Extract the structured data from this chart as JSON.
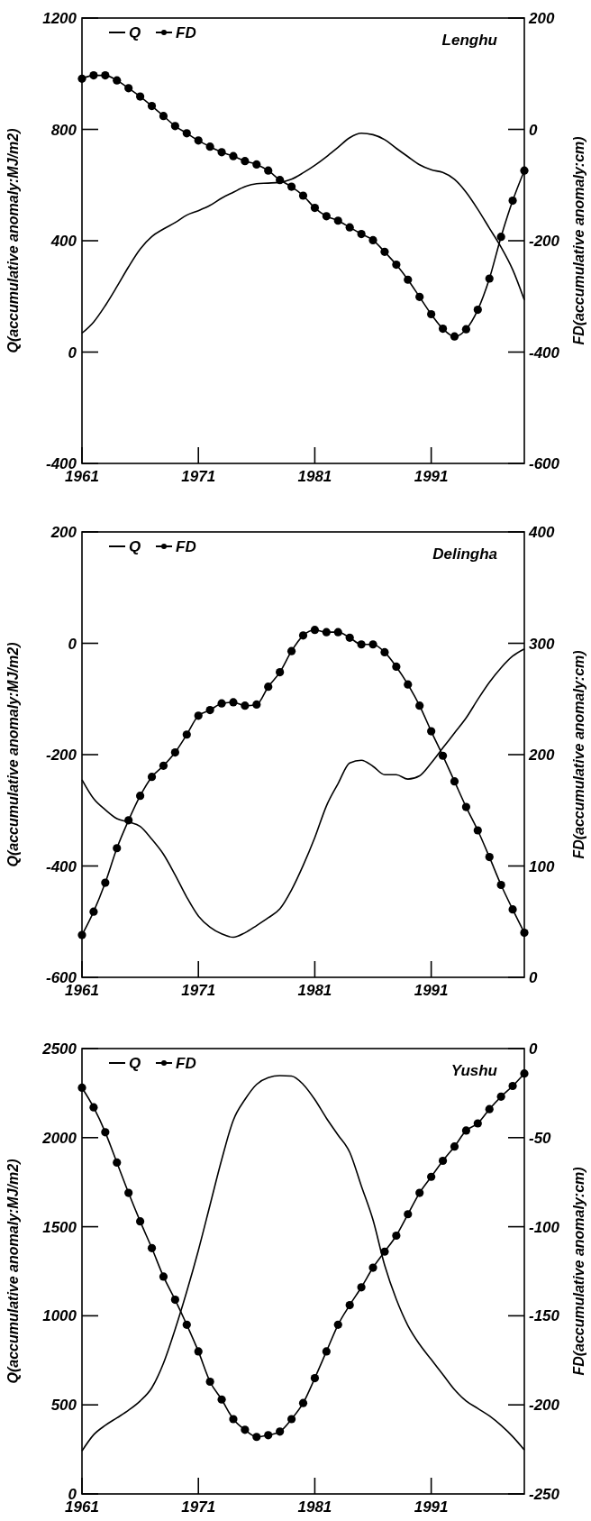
{
  "chart_data": [
    {
      "type": "line",
      "title": "Lenghu",
      "ylabel": "Q(accumulative anomaly:MJ/m2)",
      "y2label": "FD(accumulative anomaly:cm)",
      "x": [
        1961,
        1962,
        1963,
        1964,
        1965,
        1966,
        1967,
        1968,
        1969,
        1970,
        1971,
        1972,
        1973,
        1974,
        1975,
        1976,
        1977,
        1978,
        1979,
        1980,
        1981,
        1982,
        1983,
        1984,
        1985,
        1986,
        1987,
        1988,
        1989,
        1990,
        1991,
        1992,
        1993,
        1994,
        1995,
        1996,
        1997,
        1998,
        1999
      ],
      "xlim": [
        1961,
        1999
      ],
      "xticks": [
        1961,
        1971,
        1981,
        1991
      ],
      "ylim": [
        -400,
        1200
      ],
      "yticks": [
        -400,
        0,
        400,
        800,
        1200
      ],
      "y2lim": [
        -600,
        200
      ],
      "y2ticks": [
        -600,
        -400,
        -200,
        0,
        200
      ],
      "legend": "top left",
      "grid": false,
      "series": [
        {
          "name": "Q",
          "color": "#000000",
          "marker": "none",
          "values": [
            68,
            108,
            167,
            235,
            306,
            370,
            415,
            442,
            465,
            492,
            508,
            527,
            553,
            574,
            594,
            605,
            607,
            610,
            621,
            644,
            671,
            702,
            736,
            770,
            786,
            781,
            763,
            732,
            702,
            673,
            655,
            645,
            621,
            574,
            513,
            445,
            377,
            296,
            187
          ]
        },
        {
          "name": "FD",
          "color": "#000000",
          "marker": "circle",
          "axis": "y2",
          "values": [
            91,
            97,
            97,
            88,
            74,
            59,
            42,
            24,
            6,
            -7,
            -20,
            -31,
            -41,
            -48,
            -57,
            -63,
            -74,
            -91,
            -103,
            -119,
            -141,
            -156,
            -164,
            -176,
            -188,
            -199,
            -220,
            -243,
            -270,
            -301,
            -332,
            -358,
            -372,
            -359,
            -324,
            -268,
            -193,
            -128,
            -74
          ]
        }
      ]
    },
    {
      "type": "line",
      "title": "Delingha",
      "ylabel": "Q(accumulative anomaly:MJ/m2)",
      "y2label": "FD(accumulative anomaly:cm)",
      "x": [
        1961,
        1962,
        1963,
        1964,
        1965,
        1966,
        1967,
        1968,
        1969,
        1970,
        1971,
        1972,
        1973,
        1974,
        1975,
        1976,
        1977,
        1978,
        1979,
        1980,
        1981,
        1982,
        1983,
        1984,
        1985,
        1986,
        1987,
        1988,
        1989,
        1990,
        1991,
        1992,
        1993,
        1994,
        1995,
        1996,
        1997,
        1998,
        1999
      ],
      "xlim": [
        1961,
        1999
      ],
      "xticks": [
        1961,
        1971,
        1981,
        1991
      ],
      "ylim": [
        -600,
        200
      ],
      "yticks": [
        -600,
        -400,
        -200,
        0,
        200
      ],
      "y2lim": [
        0,
        400
      ],
      "y2ticks": [
        0,
        100,
        200,
        300,
        400
      ],
      "legend": "top left",
      "grid": false,
      "series": [
        {
          "name": "Q",
          "color": "#000000",
          "marker": "none",
          "values": [
            -245,
            -279,
            -299,
            -315,
            -321,
            -329,
            -352,
            -379,
            -416,
            -456,
            -490,
            -510,
            -522,
            -528,
            -520,
            -507,
            -493,
            -477,
            -443,
            -399,
            -349,
            -292,
            -252,
            -215,
            -210,
            -221,
            -236,
            -236,
            -244,
            -238,
            -215,
            -188,
            -161,
            -134,
            -101,
            -70,
            -44,
            -23,
            -10
          ]
        },
        {
          "name": "FD",
          "color": "#000000",
          "marker": "circle",
          "axis": "y2",
          "values": [
            38,
            59,
            85,
            116,
            141,
            163,
            180,
            190,
            202,
            218,
            235,
            240,
            246,
            247,
            244,
            245,
            261,
            274,
            293,
            307,
            312,
            310,
            310,
            305,
            299,
            299,
            292,
            279,
            263,
            244,
            221,
            199,
            176,
            153,
            132,
            108,
            83,
            61,
            40
          ]
        }
      ]
    },
    {
      "type": "line",
      "title": "Yushu",
      "ylabel": "Q(accumulative anomaly:MJ/m2)",
      "y2label": "FD(accumulative anomaly:cm)",
      "x": [
        1961,
        1962,
        1963,
        1964,
        1965,
        1966,
        1967,
        1968,
        1969,
        1970,
        1971,
        1972,
        1973,
        1974,
        1975,
        1976,
        1977,
        1978,
        1979,
        1980,
        1981,
        1982,
        1983,
        1984,
        1985,
        1986,
        1987,
        1988,
        1989,
        1990,
        1991,
        1992,
        1993,
        1994,
        1995,
        1996,
        1997,
        1998,
        1999
      ],
      "xlim": [
        1961,
        1999
      ],
      "xticks": [
        1961,
        1971,
        1981,
        1991
      ],
      "ylim": [
        0,
        2500
      ],
      "yticks": [
        0,
        500,
        1000,
        1500,
        2000,
        2500
      ],
      "y2lim": [
        -250,
        0
      ],
      "y2ticks": [
        -250,
        -200,
        -150,
        -100,
        -50,
        0
      ],
      "legend": "top left",
      "grid": false,
      "series": [
        {
          "name": "Q",
          "color": "#000000",
          "marker": "none",
          "values": [
            241,
            332,
            385,
            427,
            470,
            522,
            596,
            734,
            924,
            1136,
            1368,
            1622,
            1876,
            2098,
            2214,
            2299,
            2337,
            2348,
            2346,
            2299,
            2214,
            2109,
            2014,
            1918,
            1728,
            1538,
            1284,
            1093,
            945,
            840,
            755,
            671,
            586,
            522,
            480,
            438,
            385,
            322,
            247
          ]
        },
        {
          "name": "FD",
          "color": "#000000",
          "marker": "circle",
          "axis": "y2",
          "values": [
            -22,
            -33,
            -47,
            -64,
            -81,
            -97,
            -112,
            -128,
            -141,
            -155,
            -170,
            -187,
            -197,
            -208,
            -214,
            -218,
            -217,
            -215,
            -208,
            -199,
            -185,
            -170,
            -155,
            -144,
            -134,
            -123,
            -114,
            -105,
            -93,
            -81,
            -72,
            -63,
            -55,
            -46,
            -42,
            -34,
            -27,
            -21,
            -14
          ]
        }
      ]
    }
  ]
}
